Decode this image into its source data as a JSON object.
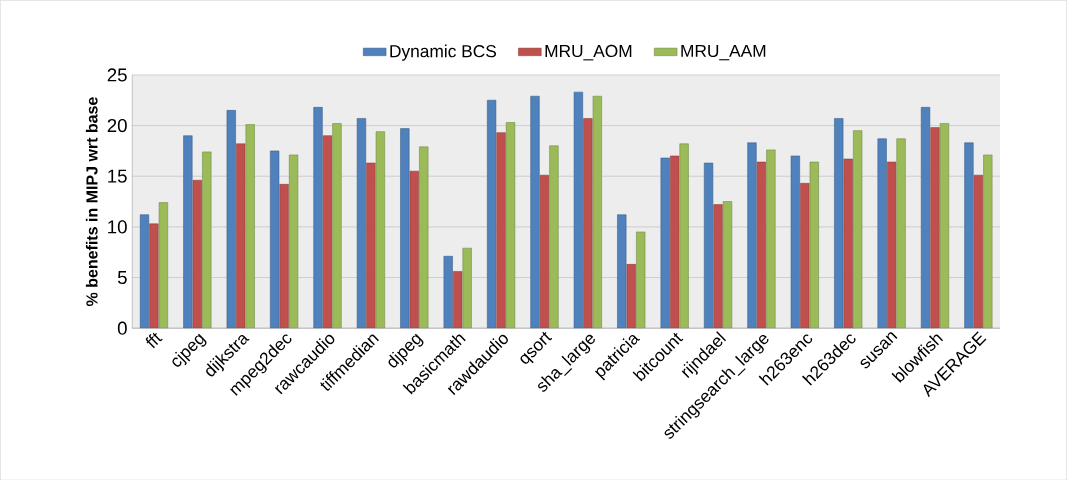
{
  "chart_data": {
    "type": "bar",
    "ylabel": "% benefits in MIPJ wrt base",
    "categories": [
      "fft",
      "cjpeg",
      "dijkstra",
      "mpeg2dec",
      "rawcaudio",
      "tiffmedian",
      "djpeg",
      "basicmath",
      "rawdaudio",
      "qsort",
      "sha_large",
      "patricia",
      "bitcount",
      "rijndael",
      "stringsearch_large",
      "h263enc",
      "h263dec",
      "susan",
      "blowfish",
      "AVERAGE"
    ],
    "series": [
      {
        "name": "Dynamic BCS",
        "color": "#4f81bd",
        "values": [
          11.2,
          19.0,
          21.5,
          17.5,
          21.8,
          20.7,
          19.7,
          7.1,
          22.5,
          22.9,
          23.3,
          11.2,
          16.8,
          16.3,
          18.3,
          17.0,
          20.7,
          18.7,
          21.8,
          18.3
        ]
      },
      {
        "name": "MRU_AOM",
        "color": "#c0504d",
        "values": [
          10.3,
          14.6,
          18.2,
          14.2,
          19.0,
          16.3,
          15.5,
          5.6,
          19.3,
          15.1,
          20.7,
          6.3,
          17.0,
          12.2,
          16.4,
          14.3,
          16.7,
          16.4,
          19.8,
          15.1
        ]
      },
      {
        "name": "MRU_AAM",
        "color": "#9bbb59",
        "values": [
          12.4,
          17.4,
          20.1,
          17.1,
          20.2,
          19.4,
          17.9,
          7.9,
          20.3,
          18.0,
          22.9,
          9.5,
          18.2,
          12.5,
          17.6,
          16.4,
          19.5,
          18.7,
          20.2,
          17.1
        ]
      }
    ],
    "ylim": [
      0,
      25
    ],
    "yticks": [
      0,
      5,
      10,
      15,
      20,
      25
    ],
    "grid": "y",
    "legend": "top"
  }
}
